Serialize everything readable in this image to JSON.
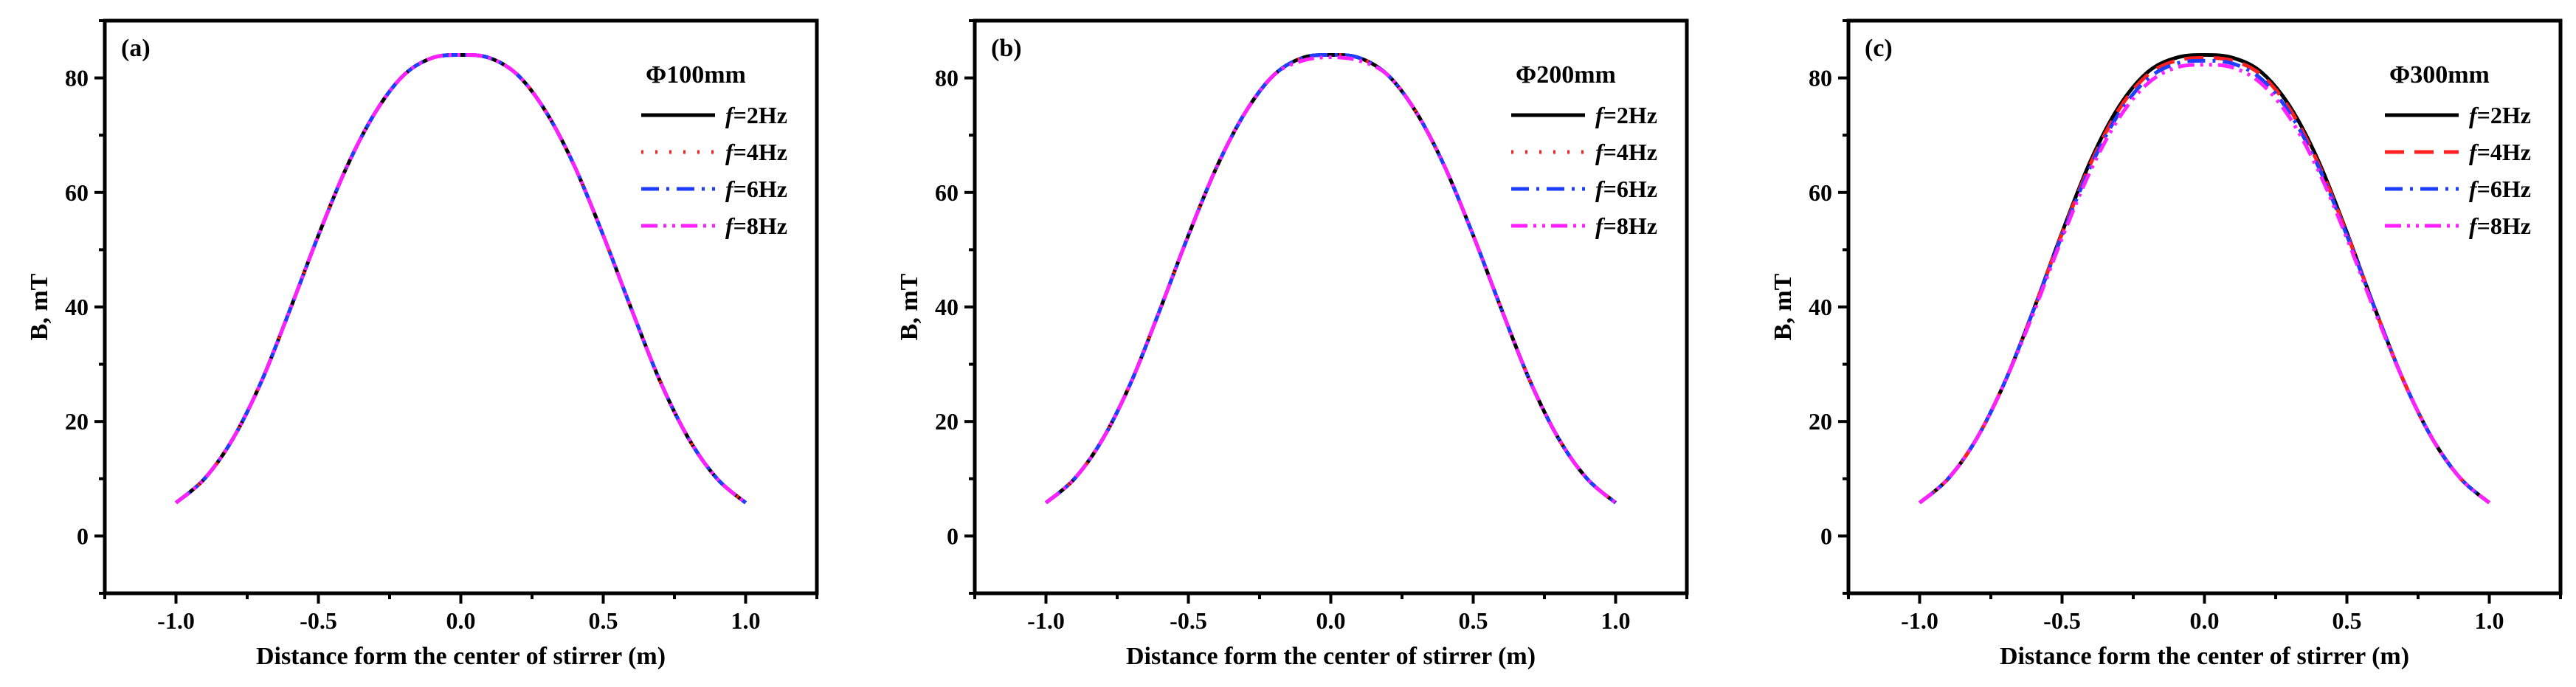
{
  "chart_data": [
    {
      "type": "line",
      "panel_label": "(a)",
      "legend_title": "Φ100mm",
      "xlabel": "Distance form the center of stirrer (m)",
      "ylabel": "B, mT",
      "xlim": [
        -1.25,
        1.25
      ],
      "ylim": [
        -10,
        90
      ],
      "xticks": [
        -1.0,
        -0.5,
        0.0,
        0.5,
        1.0
      ],
      "xtick_labels": [
        "-1.0",
        "-0.5",
        "0.0",
        "0.5",
        "1.0"
      ],
      "yticks": [
        0,
        20,
        40,
        60,
        80
      ],
      "ytick_labels": [
        "0",
        "20",
        "40",
        "60",
        "80"
      ],
      "legend_position": "top-right",
      "x": [
        -1.0,
        -0.9,
        -0.8,
        -0.7,
        -0.6,
        -0.5,
        -0.4,
        -0.3,
        -0.2,
        -0.1,
        0.0,
        0.1,
        0.2,
        0.3,
        0.4,
        0.5,
        0.6,
        0.7,
        0.8,
        0.9,
        1.0
      ],
      "series": [
        {
          "name": "f=2Hz",
          "name_italic": "f",
          "name_rest": "=2Hz",
          "color": "#000000",
          "dash": "solid",
          "values": [
            5.8,
            10.0,
            17.0,
            27.0,
            39.5,
            52.5,
            64.5,
            74.0,
            80.5,
            83.5,
            84.0,
            83.5,
            80.5,
            74.0,
            64.5,
            52.5,
            39.5,
            27.0,
            17.0,
            10.0,
            5.8
          ]
        },
        {
          "name": "f=4Hz",
          "name_italic": "f",
          "name_rest": "=4Hz",
          "color": "#ff2020",
          "dash": "dot",
          "values": [
            5.8,
            10.0,
            17.0,
            27.0,
            39.5,
            52.5,
            64.5,
            74.0,
            80.5,
            83.5,
            84.0,
            83.5,
            80.5,
            74.0,
            64.5,
            52.5,
            39.5,
            27.0,
            17.0,
            10.0,
            5.8
          ]
        },
        {
          "name": "f=6Hz",
          "name_italic": "f",
          "name_rest": "=6Hz",
          "color": "#1f3fff",
          "dash": "dashdot",
          "values": [
            5.8,
            10.0,
            17.0,
            27.0,
            39.5,
            52.5,
            64.5,
            74.0,
            80.5,
            83.5,
            84.0,
            83.5,
            80.5,
            74.0,
            64.5,
            52.5,
            39.5,
            27.0,
            17.0,
            10.0,
            5.8
          ]
        },
        {
          "name": "f=8Hz",
          "name_italic": "f",
          "name_rest": "=8Hz",
          "color": "#ff20ff",
          "dash": "dashdotdot",
          "values": [
            5.8,
            10.0,
            17.0,
            27.0,
            39.5,
            52.5,
            64.5,
            74.0,
            80.5,
            83.5,
            84.0,
            83.5,
            80.5,
            74.0,
            64.5,
            52.5,
            39.5,
            27.0,
            17.0,
            10.0,
            5.8
          ]
        }
      ]
    },
    {
      "type": "line",
      "panel_label": "(b)",
      "legend_title": "Φ200mm",
      "xlabel": "Distance form the center of stirrer (m)",
      "ylabel": "B, mT",
      "xlim": [
        -1.25,
        1.25
      ],
      "ylim": [
        -10,
        90
      ],
      "xticks": [
        -1.0,
        -0.5,
        0.0,
        0.5,
        1.0
      ],
      "xtick_labels": [
        "-1.0",
        "-0.5",
        "0.0",
        "0.5",
        "1.0"
      ],
      "yticks": [
        0,
        20,
        40,
        60,
        80
      ],
      "ytick_labels": [
        "0",
        "20",
        "40",
        "60",
        "80"
      ],
      "legend_position": "top-right",
      "x": [
        -1.0,
        -0.9,
        -0.8,
        -0.7,
        -0.6,
        -0.5,
        -0.4,
        -0.3,
        -0.2,
        -0.1,
        0.0,
        0.1,
        0.2,
        0.3,
        0.4,
        0.5,
        0.6,
        0.7,
        0.8,
        0.9,
        1.0
      ],
      "series": [
        {
          "name": "f=2Hz",
          "name_italic": "f",
          "name_rest": "=2Hz",
          "color": "#000000",
          "dash": "solid",
          "values": [
            5.8,
            10.0,
            17.0,
            27.0,
            39.5,
            52.5,
            64.5,
            74.0,
            80.5,
            83.5,
            84.0,
            83.5,
            80.5,
            74.0,
            64.5,
            52.5,
            39.5,
            27.0,
            17.0,
            10.0,
            5.8
          ]
        },
        {
          "name": "f=4Hz",
          "name_italic": "f",
          "name_rest": "=4Hz",
          "color": "#ff2020",
          "dash": "dot",
          "values": [
            5.8,
            10.0,
            17.0,
            27.0,
            39.5,
            52.5,
            64.5,
            74.0,
            80.5,
            83.5,
            84.0,
            83.5,
            80.5,
            74.0,
            64.5,
            52.5,
            39.5,
            27.0,
            17.0,
            10.0,
            5.8
          ]
        },
        {
          "name": "f=6Hz",
          "name_italic": "f",
          "name_rest": "=6Hz",
          "color": "#1f3fff",
          "dash": "dashdot",
          "values": [
            5.8,
            10.0,
            17.0,
            27.0,
            39.5,
            52.5,
            64.5,
            74.0,
            80.5,
            83.5,
            84.0,
            83.5,
            80.5,
            74.0,
            64.5,
            52.5,
            39.5,
            27.0,
            17.0,
            10.0,
            5.8
          ]
        },
        {
          "name": "f=8Hz",
          "name_italic": "f",
          "name_rest": "=8Hz",
          "color": "#ff20ff",
          "dash": "dashdotdot",
          "values": [
            5.8,
            10.0,
            17.0,
            27.0,
            39.5,
            52.5,
            64.5,
            74.0,
            80.5,
            83.0,
            83.6,
            83.0,
            80.5,
            74.0,
            64.5,
            52.5,
            39.5,
            27.0,
            17.0,
            10.0,
            5.8
          ]
        }
      ]
    },
    {
      "type": "line",
      "panel_label": "(c)",
      "legend_title": "Φ300mm",
      "xlabel": "Distance form the center of stirrer (m)",
      "ylabel": "B, mT",
      "xlim": [
        -1.25,
        1.25
      ],
      "ylim": [
        -10,
        90
      ],
      "xticks": [
        -1.0,
        -0.5,
        0.0,
        0.5,
        1.0
      ],
      "xtick_labels": [
        "-1.0",
        "-0.5",
        "0.0",
        "0.5",
        "1.0"
      ],
      "yticks": [
        0,
        20,
        40,
        60,
        80
      ],
      "ytick_labels": [
        "0",
        "20",
        "40",
        "60",
        "80"
      ],
      "legend_position": "top-right",
      "x": [
        -1.0,
        -0.9,
        -0.8,
        -0.7,
        -0.6,
        -0.5,
        -0.4,
        -0.3,
        -0.2,
        -0.1,
        0.0,
        0.1,
        0.2,
        0.3,
        0.4,
        0.5,
        0.6,
        0.7,
        0.8,
        0.9,
        1.0
      ],
      "series": [
        {
          "name": "f=2Hz",
          "name_italic": "f",
          "name_rest": "=2Hz",
          "color": "#000000",
          "dash": "solid",
          "values": [
            5.8,
            10.0,
            17.0,
            27.0,
            39.5,
            53.0,
            65.5,
            75.0,
            81.0,
            83.5,
            84.0,
            83.5,
            81.0,
            75.0,
            65.5,
            53.0,
            39.5,
            27.0,
            17.0,
            10.0,
            5.8
          ]
        },
        {
          "name": "f=4Hz",
          "name_italic": "f",
          "name_rest": "=4Hz",
          "color": "#ff2020",
          "dash": "dash",
          "values": [
            5.8,
            10.0,
            17.0,
            27.0,
            39.5,
            52.8,
            65.0,
            74.5,
            80.5,
            83.0,
            83.5,
            83.0,
            80.5,
            74.5,
            65.0,
            52.8,
            39.5,
            27.0,
            17.0,
            10.0,
            5.8
          ]
        },
        {
          "name": "f=6Hz",
          "name_italic": "f",
          "name_rest": "=6Hz",
          "color": "#1f3fff",
          "dash": "dashdot",
          "values": [
            5.8,
            10.0,
            17.0,
            27.0,
            39.5,
            52.5,
            64.5,
            73.8,
            79.8,
            82.5,
            83.0,
            82.5,
            79.8,
            73.8,
            64.5,
            52.5,
            39.5,
            27.0,
            17.0,
            10.0,
            5.8
          ]
        },
        {
          "name": "f=8Hz",
          "name_italic": "f",
          "name_rest": "=8Hz",
          "color": "#ff20ff",
          "dash": "dashdotdot",
          "values": [
            5.8,
            10.0,
            17.0,
            27.0,
            39.0,
            52.0,
            63.8,
            73.0,
            79.0,
            81.8,
            82.3,
            81.8,
            79.0,
            73.0,
            63.8,
            52.0,
            39.0,
            27.0,
            17.0,
            10.0,
            5.8
          ]
        }
      ]
    }
  ]
}
